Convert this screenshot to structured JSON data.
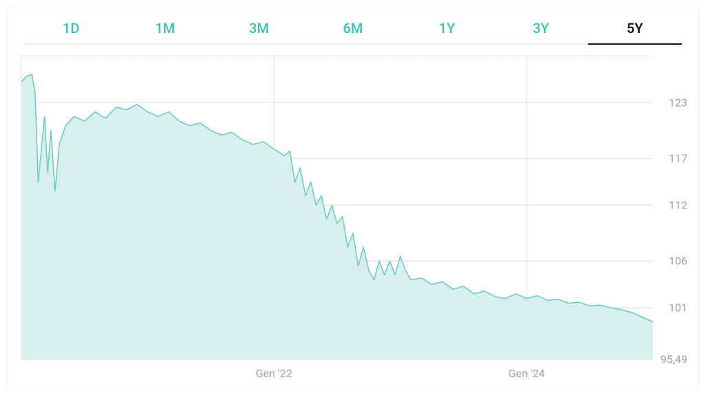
{
  "tabs": [
    {
      "label": "1D",
      "active": false
    },
    {
      "label": "1M",
      "active": false
    },
    {
      "label": "3M",
      "active": false
    },
    {
      "label": "6M",
      "active": false
    },
    {
      "label": "1Y",
      "active": false
    },
    {
      "label": "3Y",
      "active": false
    },
    {
      "label": "5Y",
      "active": true
    }
  ],
  "colors": {
    "tab_inactive": "#3cbfb9",
    "tab_active": "#1a1a1a",
    "tab_underline": "#e8e8e8",
    "axis_label": "#9aa0a6",
    "gridline": "#d9d9d9",
    "plot_border_dotted": "#c8c8c8",
    "series_line": "#5bc9c1",
    "series_fill": "#d8f0ed",
    "background": "#ffffff"
  },
  "chart": {
    "type": "area",
    "y_axis": {
      "min": 95.49,
      "max": 128,
      "ticks": [
        {
          "value": 123,
          "label": "123"
        },
        {
          "value": 117,
          "label": "117"
        },
        {
          "value": 112,
          "label": "112"
        },
        {
          "value": 106,
          "label": "106"
        },
        {
          "value": 101,
          "label": "101"
        },
        {
          "value": 95.49,
          "label": "95,49"
        }
      ],
      "label_fontsize": 16
    },
    "x_axis": {
      "min": 0,
      "max": 60,
      "gridlines": [
        24,
        48
      ],
      "ticks": [
        {
          "value": 24,
          "label": "Gen '22"
        },
        {
          "value": 48,
          "label": "Gen '24"
        }
      ],
      "label_fontsize": 16
    },
    "line_width": 1.4,
    "series": [
      {
        "x": 0,
        "y": 125.2
      },
      {
        "x": 0.5,
        "y": 125.8
      },
      {
        "x": 1,
        "y": 126.0
      },
      {
        "x": 1.3,
        "y": 124.0
      },
      {
        "x": 1.6,
        "y": 114.5
      },
      {
        "x": 1.9,
        "y": 118.0
      },
      {
        "x": 2.2,
        "y": 121.5
      },
      {
        "x": 2.5,
        "y": 115.5
      },
      {
        "x": 2.8,
        "y": 120.0
      },
      {
        "x": 3.2,
        "y": 113.5
      },
      {
        "x": 3.6,
        "y": 118.5
      },
      {
        "x": 4.2,
        "y": 120.5
      },
      {
        "x": 5,
        "y": 121.5
      },
      {
        "x": 6,
        "y": 121.0
      },
      {
        "x": 7,
        "y": 122.0
      },
      {
        "x": 8,
        "y": 121.3
      },
      {
        "x": 9,
        "y": 122.5
      },
      {
        "x": 10,
        "y": 122.2
      },
      {
        "x": 11,
        "y": 122.8
      },
      {
        "x": 12,
        "y": 122.0
      },
      {
        "x": 13,
        "y": 121.5
      },
      {
        "x": 14,
        "y": 122.0
      },
      {
        "x": 15,
        "y": 121.0
      },
      {
        "x": 16,
        "y": 120.5
      },
      {
        "x": 17,
        "y": 120.8
      },
      {
        "x": 18,
        "y": 120.0
      },
      {
        "x": 19,
        "y": 119.5
      },
      {
        "x": 20,
        "y": 119.8
      },
      {
        "x": 21,
        "y": 119.0
      },
      {
        "x": 22,
        "y": 118.5
      },
      {
        "x": 23,
        "y": 118.8
      },
      {
        "x": 24,
        "y": 118.0
      },
      {
        "x": 25,
        "y": 117.3
      },
      {
        "x": 25.5,
        "y": 117.8
      },
      {
        "x": 26,
        "y": 114.5
      },
      {
        "x": 26.5,
        "y": 116.0
      },
      {
        "x": 27,
        "y": 113.0
      },
      {
        "x": 27.5,
        "y": 114.5
      },
      {
        "x": 28,
        "y": 112.0
      },
      {
        "x": 28.5,
        "y": 113.0
      },
      {
        "x": 29,
        "y": 110.5
      },
      {
        "x": 29.5,
        "y": 112.0
      },
      {
        "x": 30,
        "y": 110.0
      },
      {
        "x": 30.5,
        "y": 110.8
      },
      {
        "x": 31,
        "y": 107.5
      },
      {
        "x": 31.5,
        "y": 109.0
      },
      {
        "x": 32,
        "y": 105.5
      },
      {
        "x": 32.5,
        "y": 107.5
      },
      {
        "x": 33,
        "y": 105.0
      },
      {
        "x": 33.5,
        "y": 104.0
      },
      {
        "x": 34,
        "y": 106.0
      },
      {
        "x": 34.5,
        "y": 104.5
      },
      {
        "x": 35,
        "y": 106.0
      },
      {
        "x": 35.5,
        "y": 104.5
      },
      {
        "x": 36,
        "y": 106.5
      },
      {
        "x": 36.5,
        "y": 105.0
      },
      {
        "x": 37,
        "y": 104.0
      },
      {
        "x": 38,
        "y": 104.2
      },
      {
        "x": 39,
        "y": 103.5
      },
      {
        "x": 40,
        "y": 103.8
      },
      {
        "x": 41,
        "y": 103.0
      },
      {
        "x": 42,
        "y": 103.3
      },
      {
        "x": 43,
        "y": 102.5
      },
      {
        "x": 44,
        "y": 102.8
      },
      {
        "x": 45,
        "y": 102.2
      },
      {
        "x": 46,
        "y": 102.0
      },
      {
        "x": 47,
        "y": 102.5
      },
      {
        "x": 48,
        "y": 102.0
      },
      {
        "x": 49,
        "y": 102.3
      },
      {
        "x": 50,
        "y": 101.8
      },
      {
        "x": 51,
        "y": 101.9
      },
      {
        "x": 52,
        "y": 101.5
      },
      {
        "x": 53,
        "y": 101.6
      },
      {
        "x": 54,
        "y": 101.2
      },
      {
        "x": 55,
        "y": 101.3
      },
      {
        "x": 56,
        "y": 101.0
      },
      {
        "x": 57,
        "y": 100.8
      },
      {
        "x": 58,
        "y": 100.5
      },
      {
        "x": 59,
        "y": 100.0
      },
      {
        "x": 60,
        "y": 99.5
      }
    ]
  }
}
